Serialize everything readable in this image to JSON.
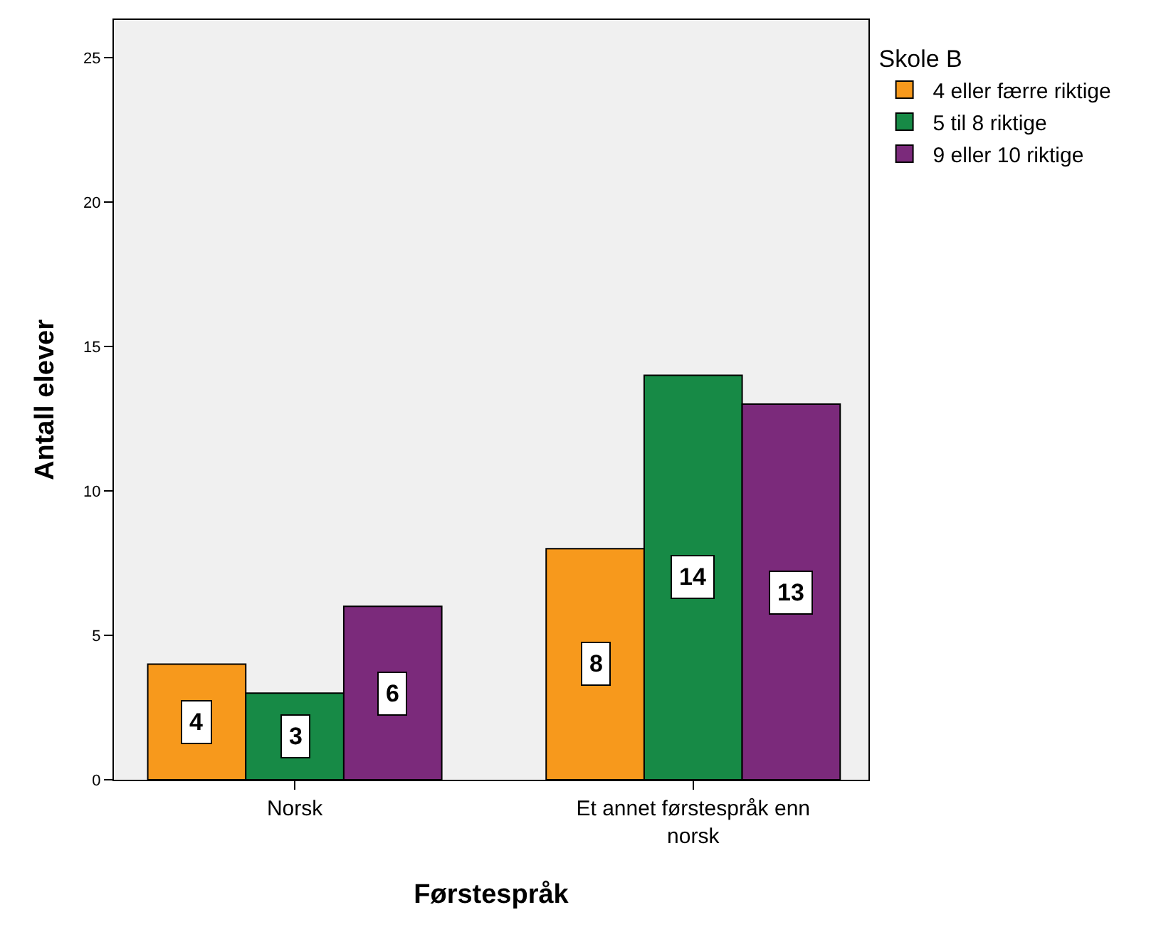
{
  "chart_data": {
    "type": "bar",
    "xlabel": "Førstespråk",
    "ylabel": "Antall elever",
    "legend_title": "Skole B",
    "categories": [
      "Norsk",
      "Et annet førstespråk enn norsk"
    ],
    "series": [
      {
        "name": "4 eller færre riktige",
        "color": "#f7991c",
        "values": [
          4,
          8
        ]
      },
      {
        "name": "5 til 8 riktige",
        "color": "#178a46",
        "values": [
          3,
          14
        ]
      },
      {
        "name": "9 eller 10 riktige",
        "color": "#7b2a7b",
        "values": [
          6,
          13
        ]
      }
    ],
    "ylim": [
      0,
      26.3
    ],
    "yticks": [
      0,
      5,
      10,
      15,
      20,
      25
    ],
    "grid": false,
    "legend": "top right",
    "data_labels": true
  }
}
